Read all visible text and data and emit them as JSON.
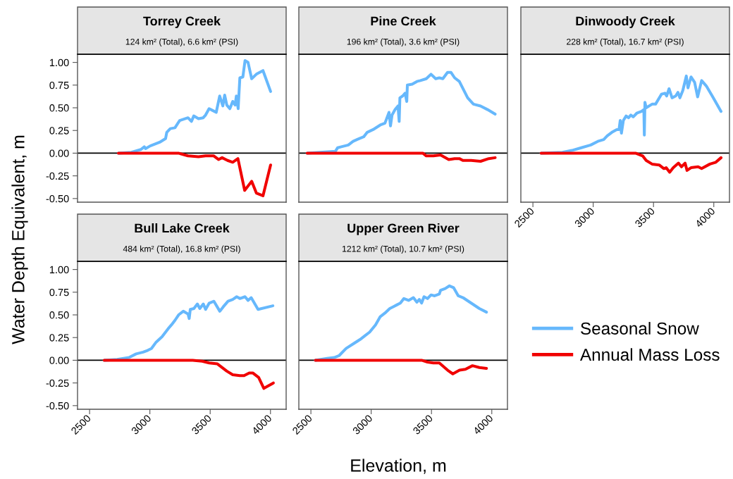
{
  "chart_data": [
    {
      "type": "line",
      "title": "Torrey Creek",
      "subtitle": "124 km² (Total), 6.6 km² (PSI)",
      "ylabel": "Water Depth Equivalent, m",
      "xlim": [
        2400,
        4130
      ],
      "ylim": [
        -0.54,
        1.09
      ],
      "yticks": [
        {
          "value": 1,
          "label": "1.00"
        },
        {
          "value": 0.75,
          "label": "0.75"
        },
        {
          "value": 0.5,
          "label": "0.50"
        },
        {
          "value": 0.25,
          "label": "0.25"
        },
        {
          "value": 0,
          "label": "0.00"
        },
        {
          "value": -0.25,
          "label": "-0.25"
        },
        {
          "value": -0.5,
          "label": "-0.50"
        }
      ],
      "tick_labels": "y",
      "grid": false,
      "ref_lines": [
        {
          "axis": "y",
          "value": 0,
          "color": "#000000"
        }
      ],
      "series": [
        {
          "color": "#66b8fc",
          "x": [
            2739,
            2847,
            2925,
            2954,
            2964,
            3003,
            3081,
            3130,
            3140,
            3169,
            3208,
            3247,
            3316,
            3345,
            3364,
            3403,
            3442,
            3462,
            3491,
            3521,
            3550,
            3579,
            3605,
            3620,
            3638,
            3663,
            3687,
            3707,
            3717,
            3732,
            3746,
            3771,
            3789,
            3814,
            3844,
            3883,
            3938,
            4001
          ],
          "values": [
            0,
            0.01,
            0.04,
            0.07,
            0.05,
            0.08,
            0.12,
            0.16,
            0.23,
            0.27,
            0.28,
            0.36,
            0.39,
            0.35,
            0.41,
            0.38,
            0.39,
            0.42,
            0.49,
            0.47,
            0.45,
            0.63,
            0.52,
            0.64,
            0.53,
            0.49,
            0.57,
            0.53,
            0.63,
            0.49,
            0.83,
            0.84,
            1.02,
            1.0,
            0.82,
            0.87,
            0.91,
            0.68
          ]
        },
        {
          "color": "#f00000",
          "x": [
            2739,
            3237,
            3316,
            3403,
            3462,
            3530,
            3569,
            3599,
            3644,
            3687,
            3730,
            3786,
            3844,
            3883,
            3938,
            4001
          ],
          "values": [
            0,
            0,
            -0.03,
            -0.04,
            -0.03,
            -0.03,
            -0.07,
            -0.05,
            -0.08,
            -0.1,
            -0.06,
            -0.41,
            -0.31,
            -0.44,
            -0.47,
            -0.13
          ]
        }
      ]
    },
    {
      "type": "line",
      "title": "Pine Creek",
      "subtitle": "196 km² (Total), 3.6 km² (PSI)",
      "xlim": [
        2400,
        4130
      ],
      "ylim": [
        -0.54,
        1.09
      ],
      "tick_labels": false,
      "grid": false,
      "ref_lines": [
        {
          "axis": "y",
          "value": 0,
          "color": "#000000"
        }
      ],
      "series": [
        {
          "color": "#66b8fc",
          "x": [
            2469,
            2703,
            2722,
            2752,
            2810,
            2850,
            2899,
            2938,
            2967,
            3016,
            3075,
            3114,
            3148,
            3160,
            3173,
            3198,
            3222,
            3232,
            3238,
            3261,
            3281,
            3295,
            3300,
            3340,
            3379,
            3408,
            3457,
            3496,
            3535,
            3565,
            3594,
            3633,
            3662,
            3692,
            3731,
            3800,
            3848,
            3907,
            3965,
            4028
          ],
          "values": [
            0,
            0.02,
            0.06,
            0.07,
            0.09,
            0.13,
            0.16,
            0.18,
            0.23,
            0.26,
            0.31,
            0.33,
            0.45,
            0.3,
            0.42,
            0.48,
            0.52,
            0.35,
            0.61,
            0.63,
            0.66,
            0.57,
            0.75,
            0.76,
            0.79,
            0.8,
            0.82,
            0.87,
            0.82,
            0.83,
            0.82,
            0.89,
            0.89,
            0.83,
            0.79,
            0.61,
            0.54,
            0.52,
            0.48,
            0.43
          ]
        },
        {
          "color": "#f00000",
          "x": [
            2469,
            3428,
            3457,
            3516,
            3575,
            3643,
            3692,
            3731,
            3760,
            3829,
            3907,
            3975,
            4028
          ],
          "values": [
            0,
            0,
            -0.03,
            -0.03,
            -0.02,
            -0.07,
            -0.06,
            -0.06,
            -0.08,
            -0.08,
            -0.09,
            -0.06,
            -0.05
          ]
        }
      ]
    },
    {
      "type": "line",
      "title": "Dinwoody Creek",
      "subtitle": "228 km² (Total), 16.7 km² (PSI)",
      "xlim": [
        2400,
        4130
      ],
      "xticks": [
        2500,
        3000,
        3500,
        4000
      ],
      "ylim": [
        -0.54,
        1.09
      ],
      "tick_labels": "x",
      "grid": false,
      "ref_lines": [
        {
          "axis": "y",
          "value": 0,
          "color": "#000000"
        }
      ],
      "series": [
        {
          "color": "#66b8fc",
          "x": [
            2568,
            2745,
            2823,
            2901,
            2979,
            3038,
            3087,
            3116,
            3155,
            3195,
            3214,
            3224,
            3234,
            3250,
            3273,
            3293,
            3312,
            3332,
            3361,
            3400,
            3420,
            3424,
            3429,
            3439,
            3488,
            3517,
            3566,
            3595,
            3609,
            3629,
            3654,
            3684,
            3703,
            3719,
            3743,
            3772,
            3786,
            3811,
            3841,
            3866,
            3899,
            3938,
            3987,
            4060
          ],
          "values": [
            0,
            0.01,
            0.03,
            0.06,
            0.09,
            0.13,
            0.15,
            0.19,
            0.23,
            0.26,
            0.26,
            0.36,
            0.22,
            0.36,
            0.41,
            0.39,
            0.42,
            0.4,
            0.44,
            0.46,
            0.48,
            0.2,
            0.56,
            0.5,
            0.54,
            0.54,
            0.65,
            0.66,
            0.63,
            0.71,
            0.61,
            0.63,
            0.67,
            0.61,
            0.69,
            0.85,
            0.72,
            0.84,
            0.78,
            0.62,
            0.8,
            0.74,
            0.63,
            0.46
          ]
        },
        {
          "color": "#f00000",
          "x": [
            2568,
            3351,
            3410,
            3439,
            3488,
            3547,
            3586,
            3605,
            3634,
            3664,
            3707,
            3732,
            3762,
            3778,
            3811,
            3870,
            3899,
            3968,
            4017,
            4060
          ],
          "values": [
            0,
            0,
            -0.03,
            -0.08,
            -0.12,
            -0.13,
            -0.17,
            -0.16,
            -0.21,
            -0.16,
            -0.11,
            -0.15,
            -0.11,
            -0.19,
            -0.16,
            -0.15,
            -0.17,
            -0.12,
            -0.1,
            -0.05
          ]
        }
      ]
    },
    {
      "type": "line",
      "title": "Bull Lake Creek",
      "subtitle": "484 km² (Total), 16.8 km² (PSI)",
      "xlim": [
        2400,
        4130
      ],
      "xticks": [
        2500,
        3000,
        3500,
        4000
      ],
      "ylim": [
        -0.54,
        1.09
      ],
      "yticks": [
        {
          "value": 1,
          "label": "1.00"
        },
        {
          "value": 0.75,
          "label": "0.75"
        },
        {
          "value": 0.5,
          "label": "0.50"
        },
        {
          "value": 0.25,
          "label": "0.25"
        },
        {
          "value": 0,
          "label": "0.00"
        },
        {
          "value": -0.25,
          "label": "-0.25"
        },
        {
          "value": -0.5,
          "label": "-0.50"
        }
      ],
      "grid": false,
      "ref_lines": [
        {
          "axis": "y",
          "value": 0,
          "color": "#000000"
        }
      ],
      "series": [
        {
          "color": "#66b8fc",
          "x": [
            2621,
            2729,
            2827,
            2886,
            2944,
            2983,
            3013,
            3052,
            3101,
            3130,
            3159,
            3179,
            3208,
            3238,
            3277,
            3316,
            3326,
            3335,
            3365,
            3394,
            3414,
            3443,
            3462,
            3492,
            3531,
            3580,
            3609,
            3648,
            3687,
            3720,
            3746,
            3789,
            3814,
            3840,
            3897,
            4020
          ],
          "values": [
            0,
            0.01,
            0.03,
            0.07,
            0.09,
            0.11,
            0.13,
            0.2,
            0.26,
            0.31,
            0.36,
            0.39,
            0.44,
            0.5,
            0.54,
            0.51,
            0.46,
            0.56,
            0.57,
            0.62,
            0.57,
            0.62,
            0.56,
            0.63,
            0.65,
            0.54,
            0.59,
            0.65,
            0.67,
            0.7,
            0.68,
            0.7,
            0.66,
            0.69,
            0.56,
            0.6
          ]
        },
        {
          "color": "#f00000",
          "x": [
            2621,
            3355,
            3433,
            3492,
            3560,
            3638,
            3687,
            3746,
            3781,
            3824,
            3853,
            3902,
            3945,
            4024
          ],
          "values": [
            0,
            0,
            -0.01,
            -0.03,
            -0.04,
            -0.12,
            -0.16,
            -0.17,
            -0.17,
            -0.14,
            -0.14,
            -0.19,
            -0.31,
            -0.25
          ]
        }
      ]
    },
    {
      "type": "line",
      "title": "Upper Green River",
      "subtitle": "1212 km² (Total), 10.7 km² (PSI)",
      "xlabel": "Elevation, m",
      "xlim": [
        2400,
        4130
      ],
      "xticks": [
        2500,
        3000,
        3500,
        4000
      ],
      "ylim": [
        -0.54,
        1.09
      ],
      "tick_labels": "x",
      "grid": false,
      "legend": "right",
      "ref_lines": [
        {
          "axis": "y",
          "value": 0,
          "color": "#000000"
        }
      ],
      "series": [
        {
          "name": "Seasonal Snow",
          "color": "#66b8fc",
          "x": [
            2537,
            2635,
            2694,
            2733,
            2792,
            2850,
            2909,
            2948,
            2987,
            3036,
            3075,
            3114,
            3154,
            3183,
            3212,
            3242,
            3271,
            3310,
            3350,
            3379,
            3399,
            3418,
            3438,
            3467,
            3496,
            3526,
            3565,
            3575,
            3614,
            3649,
            3683,
            3722,
            3761,
            3829,
            3897,
            3956
          ],
          "values": [
            0,
            0.02,
            0.03,
            0.05,
            0.13,
            0.18,
            0.23,
            0.27,
            0.31,
            0.39,
            0.48,
            0.52,
            0.57,
            0.59,
            0.61,
            0.63,
            0.68,
            0.66,
            0.69,
            0.64,
            0.67,
            0.63,
            0.7,
            0.68,
            0.72,
            0.71,
            0.73,
            0.77,
            0.79,
            0.82,
            0.8,
            0.71,
            0.69,
            0.63,
            0.57,
            0.53
          ]
        },
        {
          "name": "Annual Mass Loss",
          "color": "#f00000",
          "x": [
            2537,
            3418,
            3467,
            3516,
            3565,
            3634,
            3677,
            3732,
            3781,
            3840,
            3897,
            3956
          ],
          "values": [
            0,
            0,
            -0.02,
            -0.03,
            -0.03,
            -0.11,
            -0.15,
            -0.11,
            -0.1,
            -0.06,
            -0.08,
            -0.09
          ]
        }
      ]
    }
  ]
}
